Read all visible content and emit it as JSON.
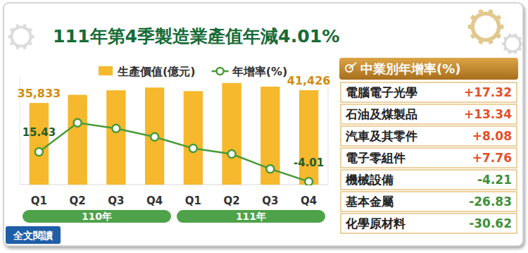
{
  "chart_data": [
    {
      "type": "bar",
      "title": "111年第4季製造業產值年減4.01%",
      "categories": [
        "Q1",
        "Q2",
        "Q3",
        "Q4",
        "Q1",
        "Q2",
        "Q3",
        "Q4"
      ],
      "category_groups": [
        "110年",
        "111年"
      ],
      "series": [
        {
          "name": "生產價值(億元)",
          "type": "bar",
          "color": "#f6b82c",
          "values": [
            35833,
            39400,
            41400,
            42600,
            41030,
            44600,
            43000,
            41426
          ],
          "value_labels": [
            "35,833",
            null,
            null,
            null,
            null,
            null,
            null,
            "41,426"
          ]
        },
        {
          "name": "年增率(%)",
          "type": "line",
          "axis": "y2",
          "color": "#4a9a3a",
          "marker": "circle",
          "values": [
            15.43,
            34.4,
            30.7,
            25.2,
            17.7,
            14.0,
            4.3,
            -4.01
          ],
          "value_labels": [
            "15.43",
            null,
            null,
            null,
            null,
            null,
            null,
            "-4.01"
          ]
        }
      ],
      "ylim": [
        0,
        47000
      ],
      "yticks": [],
      "y2lim": [
        -6,
        64
      ],
      "y2ticks": [],
      "tick_labels": "x",
      "data_labels": true,
      "legend": "top",
      "grid": false,
      "annotation": "全文閱讀"
    },
    {
      "type": "table",
      "title": "中業別年增率(%)",
      "categories": [
        "電腦電子光學",
        "石油及煤製品",
        "汽車及其零件",
        "電子零組件",
        "機械設備",
        "基本金屬",
        "化學原材料"
      ],
      "values": [
        17.32,
        13.34,
        8.08,
        7.76,
        -4.21,
        -26.83,
        -30.62
      ],
      "value_labels": [
        "+17.32",
        "+13.34",
        "+8.08",
        "+7.76",
        "-4.21",
        "-26.83",
        "-30.62"
      ],
      "colors": [
        "#e4502a",
        "#e4502a",
        "#e4502a",
        "#e4502a",
        "#3f8f3a",
        "#3f8f3a",
        "#3f8f3a"
      ]
    }
  ]
}
